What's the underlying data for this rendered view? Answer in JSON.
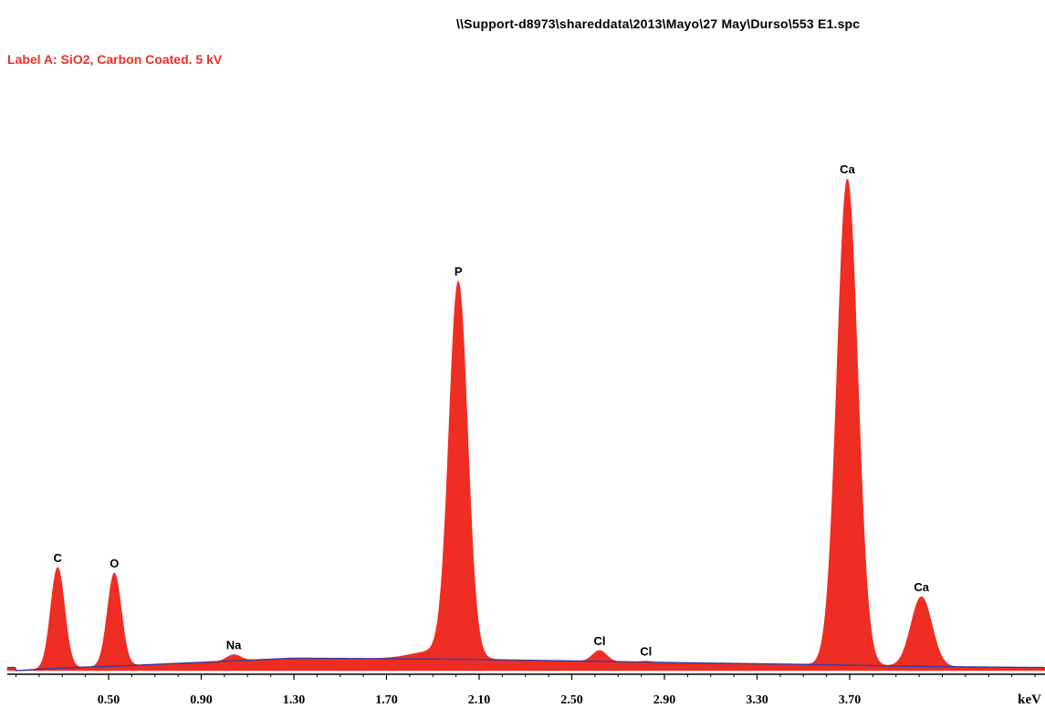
{
  "header": {
    "file_path": "\\\\Support-d8973\\shareddata\\2013\\Mayo\\27 May\\Durso\\553 E1.spc",
    "sample_label": "Label A: SiO2, Carbon Coated.  5 kV"
  },
  "colors": {
    "spectrum_fill": "#ee2d23",
    "background_line": "#3a3aa0",
    "sample_label": "#e8302a",
    "axis": "#000000"
  },
  "chart_data": {
    "type": "area",
    "xunit": "keV",
    "xlim": [
      0.1,
      4.5
    ],
    "ylim": [
      0,
      100
    ],
    "xticks": [
      "0.50",
      "0.90",
      "1.30",
      "1.70",
      "2.10",
      "2.50",
      "2.90",
      "3.30",
      "3.70"
    ],
    "peaks": [
      {
        "label": "C",
        "energy": 0.28,
        "height": 19.5,
        "width": 0.03
      },
      {
        "label": "O",
        "energy": 0.525,
        "height": 18.0,
        "width": 0.03
      },
      {
        "label": "Na",
        "energy": 1.04,
        "height": 1.2,
        "width": 0.03
      },
      {
        "label": "P",
        "energy": 2.01,
        "height": 72.0,
        "width": 0.04
      },
      {
        "label": "Cl",
        "energy": 2.62,
        "height": 2.1,
        "width": 0.03
      },
      {
        "label": "Cl",
        "energy": 2.82,
        "height": 0.2,
        "width": 0.02
      },
      {
        "label": "Ca",
        "energy": 3.69,
        "height": 94.0,
        "width": 0.045
      },
      {
        "label": "Ca",
        "energy": 4.01,
        "height": 13.5,
        "width": 0.045
      }
    ],
    "background": [
      [
        0.1,
        0.0
      ],
      [
        0.3,
        0.5
      ],
      [
        0.6,
        1.0
      ],
      [
        1.0,
        1.8
      ],
      [
        1.3,
        2.4
      ],
      [
        2.0,
        2.2
      ],
      [
        2.6,
        1.8
      ],
      [
        3.0,
        1.5
      ],
      [
        3.5,
        1.2
      ],
      [
        4.0,
        0.8
      ],
      [
        4.5,
        0.6
      ]
    ]
  }
}
